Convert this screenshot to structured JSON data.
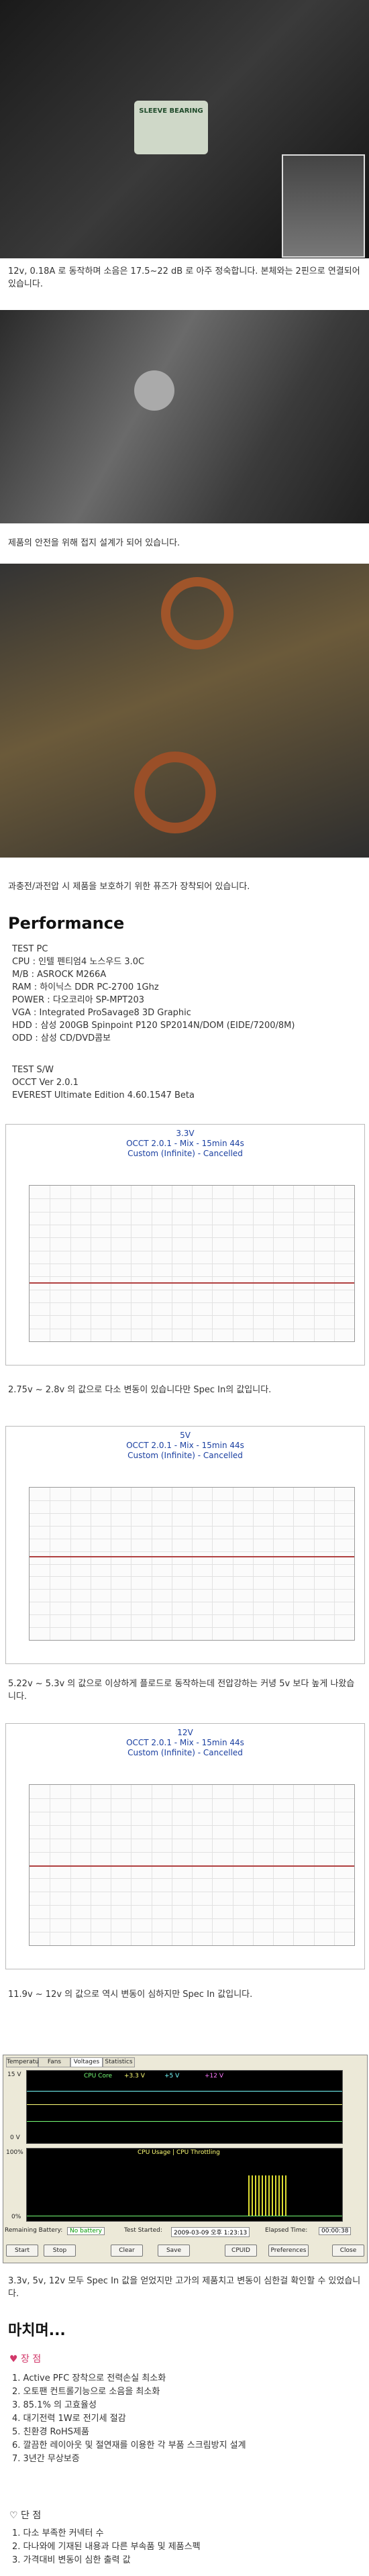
{
  "photos": [
    {
      "caption": "12v, 0.18A 로 동작하며 소음은 17.5~22 dB 로 아주 정숙합니다. 본체와는 2핀으로 연결되어 있습니다.",
      "label": "SLEEVE BEARING"
    },
    {
      "caption": "제품의 안전을 위해 접지 설계가 되어 있습니다."
    },
    {
      "caption": "과충전/과전압 시 제품을 보호하기 위한 퓨즈가 장착되어 있습니다."
    }
  ],
  "performance": {
    "heading": "Performance",
    "test_pc": [
      "TEST PC",
      "CPU : 인텔 펜티엄4 노스우드 3.0C",
      "M/B : ASROCK M266A",
      "RAM : 하이닉스 DDR PC-2700 1Ghz",
      "POWER : 다오코리아 SP-MPT203",
      "VGA : Integrated ProSavage8 3D Graphic",
      "HDD : 삼성 200GB Spinpoint P120 SP2014N/DOM (EIDE/7200/8M)",
      "ODD : 삼성 CD/DVD콤보"
    ],
    "test_sw": [
      "TEST S/W",
      "OCCT Ver 2.0.1",
      "EVEREST Ultimate Edition 4.60.1547 Beta"
    ]
  },
  "charts": [
    {
      "title": "3.3V",
      "subtitle": "OCCT 2.0.1 - Mix - 15min 44s",
      "mode": "Custom (Infinite) - Cancelled",
      "caption": "2.75v ~ 2.8v 의 값으로 다소 변동이 있습니다만 Spec In의 값입니다."
    },
    {
      "title": "5V",
      "subtitle": "OCCT 2.0.1 - Mix - 15min 44s",
      "mode": "Custom (Infinite) - Cancelled",
      "caption": "5.22v ~ 5.3v 의 값으로 이상하게 플로드로 동작하는데 전압강하는 커녕 5v 보다 높게 나왔습니다."
    },
    {
      "title": "12V",
      "subtitle": "OCCT 2.0.1 - Mix - 15min 44s",
      "mode": "Custom (Infinite) - Cancelled",
      "caption": "11.9v ~ 12v 의 값으로 역시 변동이 심하지만 Spec In 값입니다."
    }
  ],
  "everest": {
    "tabs": [
      "Temperatures",
      "Fans",
      "Voltages",
      "Statistics"
    ],
    "legend": [
      "CPU Core",
      "+3.3 V",
      "+5 V",
      "+12 V"
    ],
    "v_top": "15 V",
    "v_bottom": "0 V",
    "usage_title": "CPU Usage | CPU Throttling",
    "u_top": "100%",
    "u_bottom": "0%",
    "battery_label": "Remaining Battery:",
    "battery": "No battery",
    "started_label": "Test Started:",
    "started": "2009-03-09 오후 1:23:13",
    "elapsed_label": "Elapsed Time:",
    "elapsed": "00:00:38",
    "buttons": [
      "Start",
      "Stop",
      "Clear",
      "Save",
      "CPUID",
      "Preferences",
      "Close"
    ],
    "caption": "3.3v, 5v, 12v 모두 Spec In 값을 얻었지만 고가의 제품치고 변동이 심한걸 확인할 수 있었습니다."
  },
  "conclusion": {
    "heading": "마치며...",
    "pros_title": "♥ 장 점",
    "pros": [
      "1. Active PFC 장착으로 전력손실 최소화",
      "2. 오토팬 컨트롤기능으로 소음을 최소화",
      "3. 85.1% 의 고효율성",
      "4. 대기전력 1W로 전기세 절감",
      "5. 친환경 RoHS제품",
      "6. 깔끔한 레이아웃 및 절연재를 이용한 각 부품 스크림방지 설계",
      "7. 3년간 무상보증"
    ],
    "cons_title": "♡ 단 점",
    "cons": [
      "1. 다소 부족한 커넥터 수",
      "2. 다나와에 기재된 내용과 다른 부속품 및 제품스펙",
      "3. 가격대비 변동이 심한 출력 값"
    ]
  }
}
